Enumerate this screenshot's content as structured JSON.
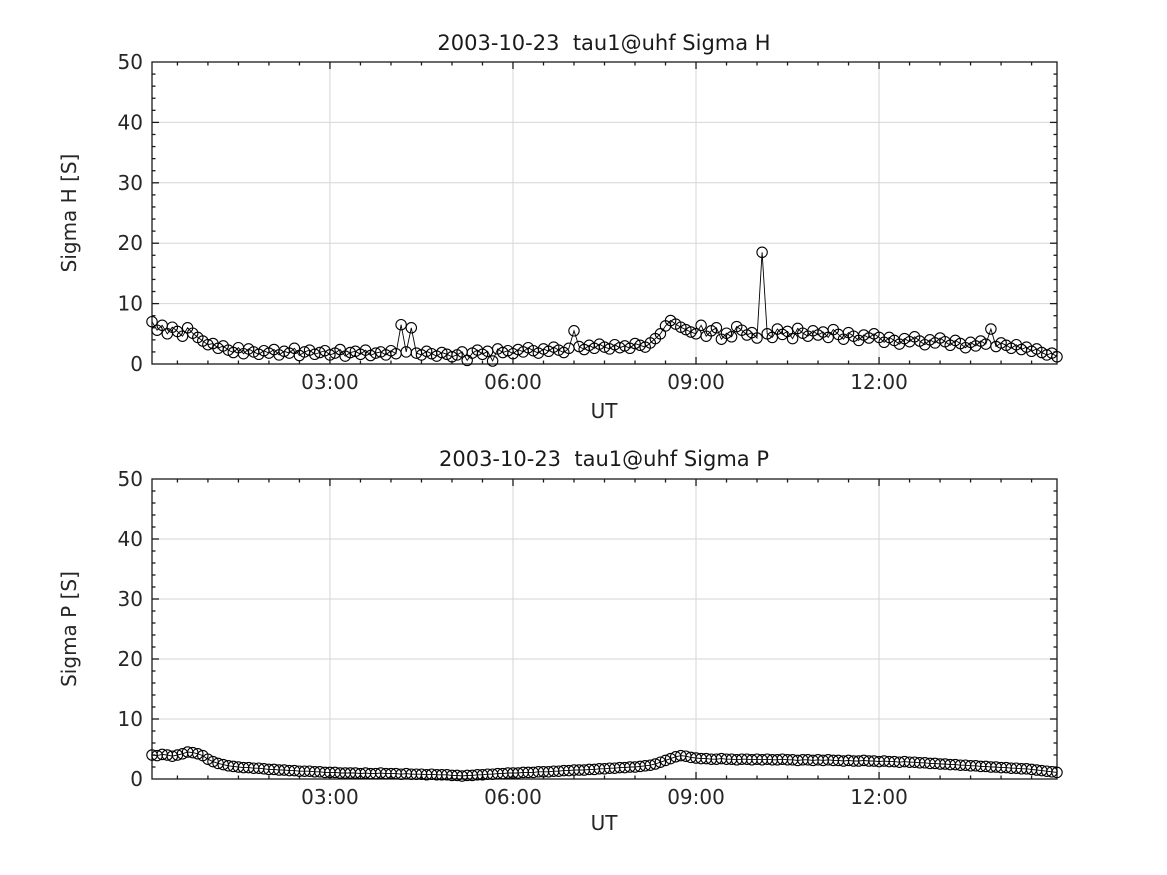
{
  "figure": {
    "background": "#ffffff"
  },
  "style": {
    "axis_color": "#1a1a1a",
    "text_color": "#262626",
    "grid_color": "#d6d6d6",
    "line_color": "#000000",
    "marker_color": "#000000"
  },
  "chart_data": [
    {
      "type": "line",
      "title": "2003-10-23  tau1@uhf Sigma H",
      "xlabel": "UT",
      "ylabel": "Sigma H [S]",
      "ylim": [
        0,
        50
      ],
      "yticks": [
        0,
        10,
        20,
        30,
        40,
        50
      ],
      "y_minor_step": 2,
      "xlim_minutes": [
        5,
        895
      ],
      "xticks": [
        {
          "minutes": 180,
          "label": "03:00"
        },
        {
          "minutes": 360,
          "label": "06:00"
        },
        {
          "minutes": 540,
          "label": "09:00"
        },
        {
          "minutes": 720,
          "label": "12:00"
        }
      ],
      "x_minor_step_minutes": 30,
      "grid": true,
      "legend": "none",
      "marker": "open-circle",
      "series": [
        {
          "name": "Sigma H",
          "t_start_min": 5,
          "t_step_min": 5,
          "values": [
            7.0,
            5.6,
            6.4,
            5.0,
            6.1,
            5.4,
            4.6,
            6.0,
            5.1,
            4.4,
            3.8,
            3.2,
            3.4,
            2.6,
            3.0,
            2.3,
            1.9,
            2.7,
            1.7,
            2.5,
            2.0,
            1.6,
            2.2,
            1.8,
            2.4,
            1.5,
            2.1,
            1.8,
            2.6,
            1.4,
            2.0,
            2.3,
            1.6,
            1.9,
            2.2,
            1.5,
            1.8,
            2.4,
            1.3,
            1.9,
            2.1,
            1.6,
            2.3,
            1.4,
            1.8,
            2.0,
            1.5,
            2.2,
            1.7,
            6.5,
            2.0,
            6.0,
            1.8,
            1.5,
            2.1,
            1.7,
            1.3,
            1.9,
            1.6,
            1.2,
            1.5,
            2.0,
            0.6,
            1.8,
            2.3,
            1.6,
            2.1,
            0.5,
            2.5,
            1.9,
            2.2,
            1.7,
            2.4,
            2.0,
            2.7,
            2.2,
            1.8,
            2.5,
            2.1,
            2.8,
            2.3,
            1.9,
            2.6,
            5.5,
            2.9,
            2.4,
            3.1,
            2.6,
            3.3,
            2.8,
            2.5,
            3.2,
            2.7,
            3.0,
            2.6,
            3.4,
            3.1,
            2.8,
            3.5,
            4.2,
            5.0,
            6.3,
            7.2,
            6.6,
            6.1,
            5.7,
            5.3,
            5.0,
            6.4,
            4.6,
            5.5,
            6.0,
            4.1,
            5.1,
            4.5,
            6.2,
            5.6,
            4.8,
            5.2,
            4.3,
            18.5,
            5.0,
            4.4,
            5.8,
            4.9,
            5.4,
            4.2,
            5.9,
            5.1,
            4.6,
            5.5,
            4.8,
            5.3,
            4.4,
            5.7,
            4.9,
            4.1,
            5.2,
            4.6,
            3.9,
            4.8,
            4.3,
            5.0,
            4.4,
            3.6,
            4.4,
            3.9,
            3.3,
            4.2,
            3.7,
            4.5,
            3.8,
            3.2,
            4.0,
            3.5,
            4.3,
            3.7,
            3.1,
            3.9,
            3.4,
            2.7,
            3.6,
            3.0,
            3.8,
            3.3,
            5.8,
            2.9,
            3.5,
            3.1,
            2.6,
            3.2,
            2.4,
            2.8,
            2.1,
            2.5,
            1.9,
            1.5,
            1.8,
            1.2
          ]
        }
      ]
    },
    {
      "type": "line",
      "title": "2003-10-23  tau1@uhf Sigma P",
      "xlabel": "UT",
      "ylabel": "Sigma P [S]",
      "ylim": [
        0,
        50
      ],
      "yticks": [
        0,
        10,
        20,
        30,
        40,
        50
      ],
      "y_minor_step": 2,
      "xlim_minutes": [
        5,
        895
      ],
      "xticks": [
        {
          "minutes": 180,
          "label": "03:00"
        },
        {
          "minutes": 360,
          "label": "06:00"
        },
        {
          "minutes": 540,
          "label": "09:00"
        },
        {
          "minutes": 720,
          "label": "12:00"
        }
      ],
      "x_minor_step_minutes": 30,
      "grid": true,
      "legend": "none",
      "marker": "open-circle",
      "series": [
        {
          "name": "Sigma P",
          "t_start_min": 5,
          "t_step_min": 5,
          "values": [
            4.0,
            3.9,
            4.1,
            4.0,
            3.8,
            4.0,
            4.2,
            4.5,
            4.4,
            4.2,
            3.9,
            3.3,
            2.9,
            2.6,
            2.4,
            2.2,
            2.1,
            2.0,
            1.9,
            1.9,
            1.8,
            1.8,
            1.7,
            1.6,
            1.6,
            1.5,
            1.5,
            1.4,
            1.4,
            1.3,
            1.3,
            1.3,
            1.2,
            1.2,
            1.1,
            1.1,
            1.1,
            1.0,
            1.0,
            1.0,
            1.0,
            0.9,
            1.0,
            0.9,
            0.9,
            1.0,
            0.9,
            0.9,
            0.9,
            0.8,
            0.9,
            0.8,
            0.8,
            0.8,
            0.7,
            0.8,
            0.7,
            0.7,
            0.7,
            0.6,
            0.6,
            0.5,
            0.6,
            0.6,
            0.7,
            0.7,
            0.8,
            0.8,
            0.9,
            0.9,
            1.0,
            1.0,
            1.0,
            1.1,
            1.1,
            1.1,
            1.2,
            1.2,
            1.2,
            1.3,
            1.3,
            1.4,
            1.4,
            1.5,
            1.5,
            1.5,
            1.6,
            1.6,
            1.7,
            1.7,
            1.8,
            1.8,
            1.9,
            1.9,
            2.0,
            2.0,
            2.1,
            2.2,
            2.3,
            2.5,
            2.8,
            3.1,
            3.4,
            3.7,
            3.9,
            3.8,
            3.6,
            3.5,
            3.4,
            3.4,
            3.3,
            3.3,
            3.4,
            3.3,
            3.3,
            3.2,
            3.3,
            3.3,
            3.2,
            3.3,
            3.2,
            3.3,
            3.2,
            3.2,
            3.3,
            3.2,
            3.2,
            3.1,
            3.2,
            3.2,
            3.1,
            3.2,
            3.1,
            3.2,
            3.1,
            3.1,
            3.0,
            3.1,
            3.0,
            3.0,
            3.1,
            3.0,
            3.0,
            2.9,
            3.0,
            2.9,
            2.9,
            2.8,
            2.9,
            2.8,
            2.8,
            2.7,
            2.7,
            2.6,
            2.6,
            2.5,
            2.5,
            2.4,
            2.4,
            2.3,
            2.3,
            2.2,
            2.2,
            2.1,
            2.1,
            2.0,
            2.0,
            1.9,
            1.9,
            1.8,
            1.8,
            1.7,
            1.7,
            1.6,
            1.5,
            1.4,
            1.3,
            1.2,
            1.1
          ]
        }
      ]
    }
  ]
}
